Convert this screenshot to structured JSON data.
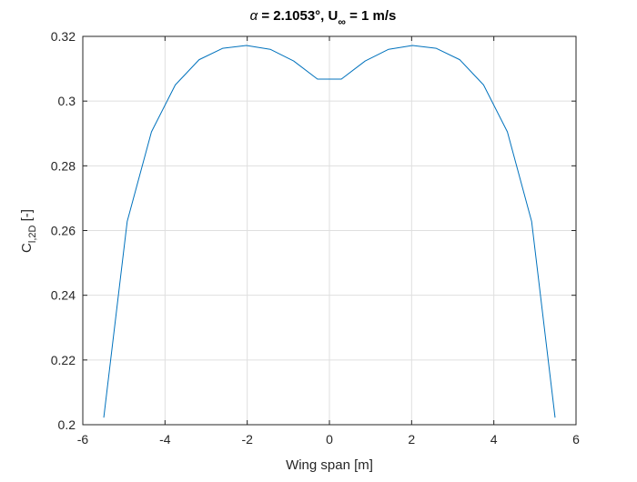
{
  "chart_data": {
    "type": "line",
    "title": {
      "alpha": "α",
      "mid": " = 2.1053°, U",
      "sub": "∞",
      "end": " = 1 m/s"
    },
    "xlabel": "Wing span [m]",
    "ylabel": {
      "main": "C",
      "sub": "l,2D",
      "end": " [-]"
    },
    "xlim": [
      -6,
      6
    ],
    "ylim": [
      0.2,
      0.32
    ],
    "xticks": [
      -6,
      -4,
      -2,
      0,
      2,
      4,
      6
    ],
    "yticks": [
      0.2,
      0.22,
      0.24,
      0.26,
      0.28,
      0.3,
      0.32
    ],
    "xtick_labels": [
      "-6",
      "-4",
      "-2",
      "0",
      "2",
      "4",
      "6"
    ],
    "ytick_labels": [
      "0.2",
      "0.22",
      "0.24",
      "0.26",
      "0.28",
      "0.3",
      "0.32"
    ],
    "grid": true,
    "line_color": "#0072BD",
    "series": [
      {
        "x": [
          -5.49,
          -4.92,
          -4.33,
          -3.75,
          -3.17,
          -2.6,
          -2.02,
          -1.44,
          -0.87,
          -0.29,
          0.29,
          0.87,
          1.44,
          2.02,
          2.6,
          3.17,
          3.75,
          4.33,
          4.92,
          5.49
        ],
        "y": [
          0.2022,
          0.2628,
          0.2905,
          0.305,
          0.3128,
          0.3163,
          0.3172,
          0.316,
          0.3124,
          0.3068,
          0.3068,
          0.3124,
          0.316,
          0.3172,
          0.3163,
          0.3128,
          0.305,
          0.2905,
          0.2628,
          0.2022
        ]
      }
    ]
  }
}
